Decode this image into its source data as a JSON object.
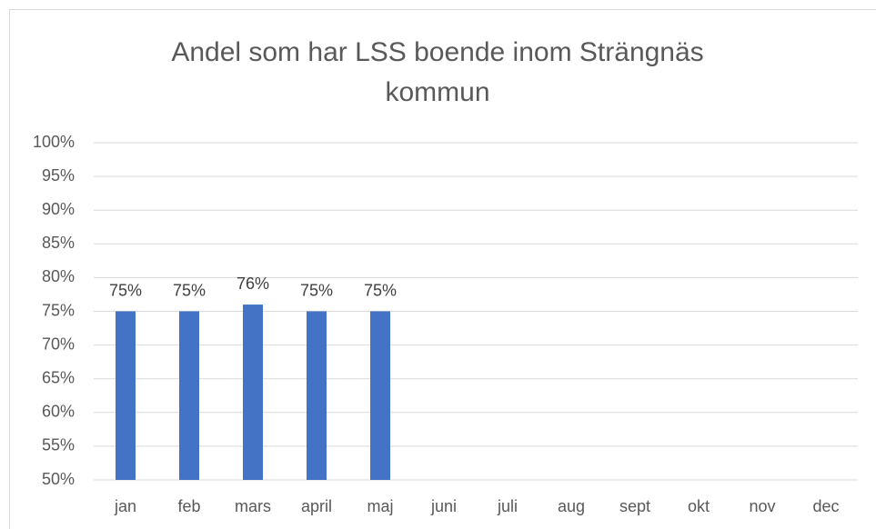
{
  "chart_data": {
    "type": "bar",
    "title": "Andel som har LSS boende inom Strängnäs kommun",
    "categories": [
      "jan",
      "feb",
      "mars",
      "april",
      "maj",
      "juni",
      "juli",
      "aug",
      "sept",
      "okt",
      "nov",
      "dec"
    ],
    "values": [
      75,
      75,
      76,
      75,
      75,
      null,
      null,
      null,
      null,
      null,
      null,
      null
    ],
    "value_labels": [
      "75%",
      "75%",
      "76%",
      "75%",
      "75%",
      null,
      null,
      null,
      null,
      null,
      null,
      null
    ],
    "color": "#4472c4",
    "ylim": [
      50,
      100
    ],
    "yticks": [
      {
        "value": 50,
        "label": "50%"
      },
      {
        "value": 55,
        "label": "55%"
      },
      {
        "value": 60,
        "label": "60%"
      },
      {
        "value": 65,
        "label": "65%"
      },
      {
        "value": 70,
        "label": "70%"
      },
      {
        "value": 75,
        "label": "75%"
      },
      {
        "value": 80,
        "label": "80%"
      },
      {
        "value": 85,
        "label": "85%"
      },
      {
        "value": 90,
        "label": "90%"
      },
      {
        "value": 95,
        "label": "95%"
      },
      {
        "value": 100,
        "label": "100%"
      }
    ],
    "grid": true
  }
}
